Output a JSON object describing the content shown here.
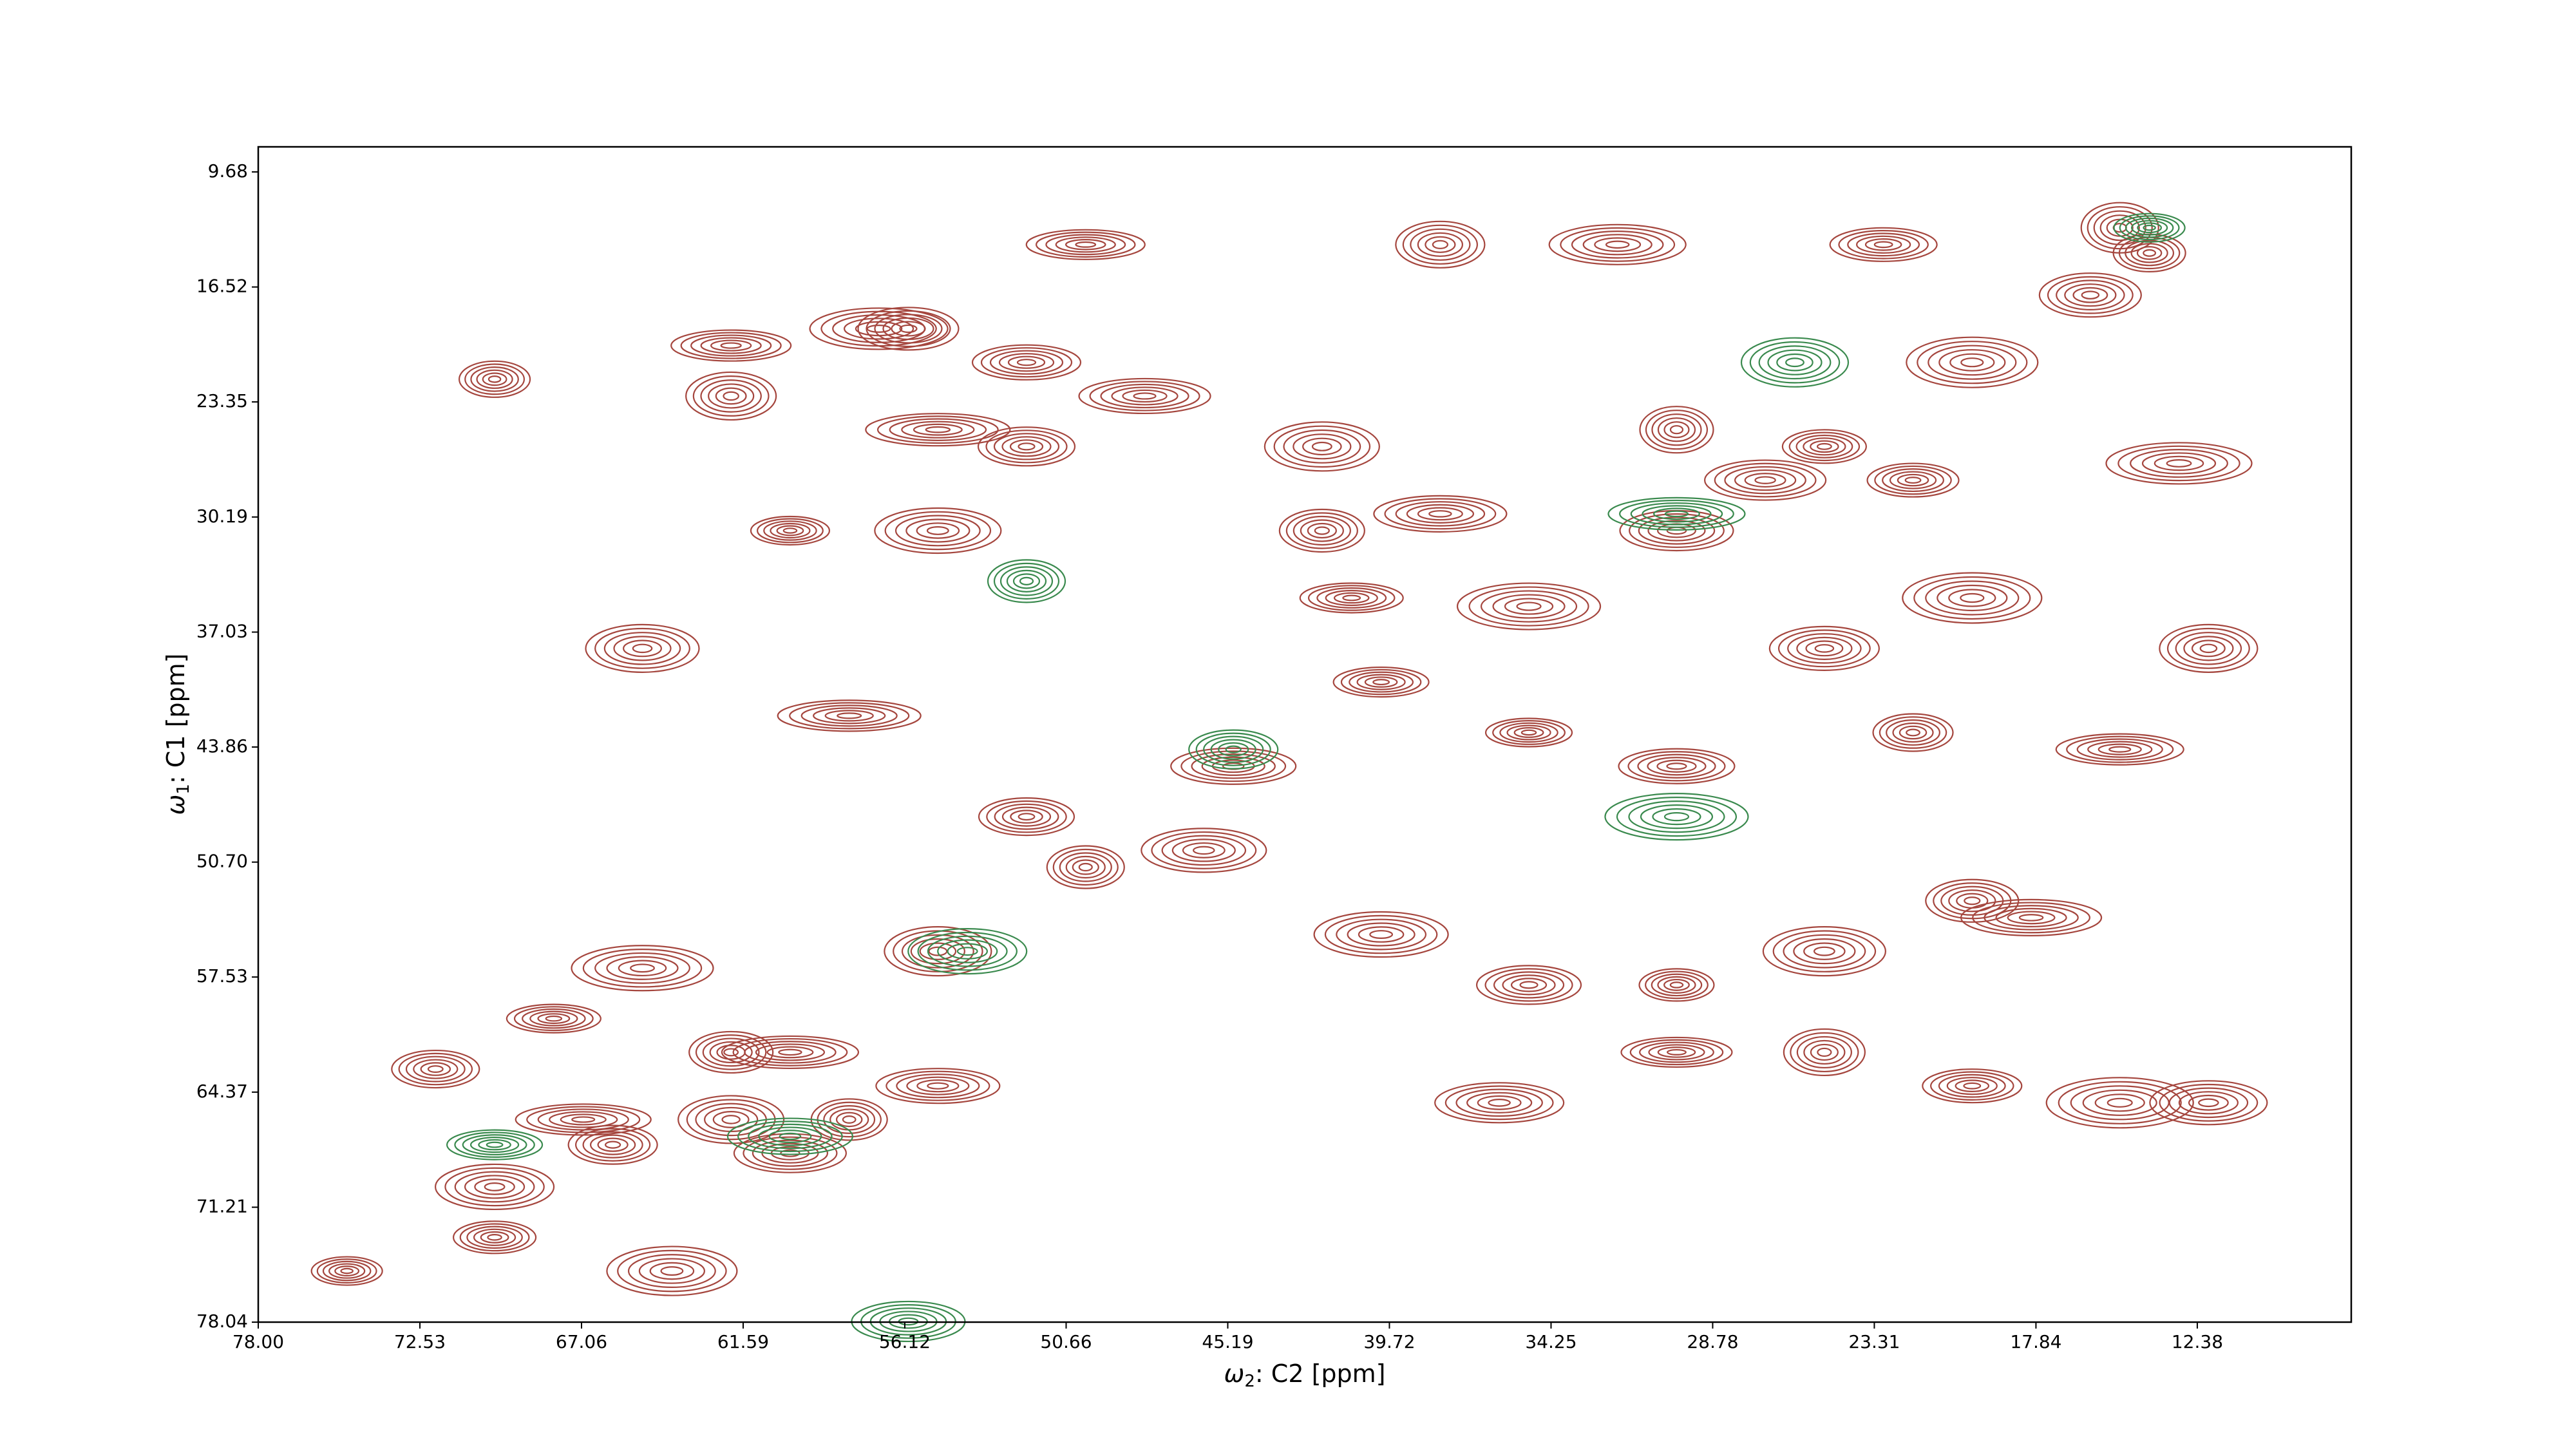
{
  "chart_data": {
    "type": "contour",
    "x_label": "C2 [ppm]",
    "x_label_symbol": "ω",
    "x_label_sub": "2",
    "y_label": "C1 [ppm]",
    "y_label_symbol": "ω",
    "y_label_sub": "1",
    "xlim": [
      78.0,
      7.17
    ],
    "ylim": [
      78.04,
      8.19
    ],
    "xticks": [
      {
        "value": 78.0,
        "label": "78.00"
      },
      72.53,
      67.06,
      61.59,
      56.12,
      50.66,
      45.19,
      39.72,
      34.25,
      28.78,
      23.31,
      17.84,
      12.38
    ],
    "yticks": [
      9.68,
      16.52,
      23.35,
      30.19,
      37.03,
      43.86,
      {
        "value": 50.7,
        "label": "50.70"
      },
      57.53,
      64.37,
      71.21,
      78.04
    ],
    "series": [
      {
        "color": "#a5463e",
        "x": [
          75,
          70,
          66,
          60,
          55,
          50,
          45,
          40,
          35,
          30,
          25,
          20,
          16,
          14,
          62,
          62,
          57,
          52,
          60,
          55,
          52,
          55,
          42,
          42,
          38,
          41,
          30,
          27,
          22,
          20,
          25,
          22,
          15,
          12,
          13,
          30,
          35,
          40,
          35,
          30,
          25,
          20,
          18,
          30,
          25,
          36,
          20,
          15,
          12,
          72,
          67,
          62,
          58,
          55,
          68,
          65,
          60,
          70,
          64,
          56,
          70,
          50,
          38,
          32,
          23,
          15,
          46,
          52,
          58,
          65,
          62,
          48
        ],
        "y": [
          75,
          70,
          67.5,
          62,
          56,
          51,
          45,
          40,
          35.5,
          31,
          26,
          21,
          17,
          14.5,
          20,
          23,
          19,
          21,
          31,
          31,
          26,
          25,
          26,
          31,
          30,
          35,
          25,
          28,
          28,
          35,
          38,
          43,
          44,
          38,
          27,
          45,
          43,
          55,
          58,
          58,
          56,
          53,
          54,
          62,
          62,
          65,
          64,
          65,
          65,
          63,
          66,
          66,
          66,
          64,
          60,
          57,
          68,
          73,
          75,
          19,
          22,
          14,
          14,
          14,
          14,
          13,
          50,
          48,
          42,
          38,
          62,
          23
        ]
      },
      {
        "color": "#3a8a4e",
        "x": [
          14,
          54,
          45,
          30,
          26,
          52,
          60,
          70,
          30,
          56
        ],
        "y": [
          13,
          56,
          44,
          30,
          21,
          34,
          67,
          67.5,
          48,
          78
        ]
      }
    ]
  }
}
